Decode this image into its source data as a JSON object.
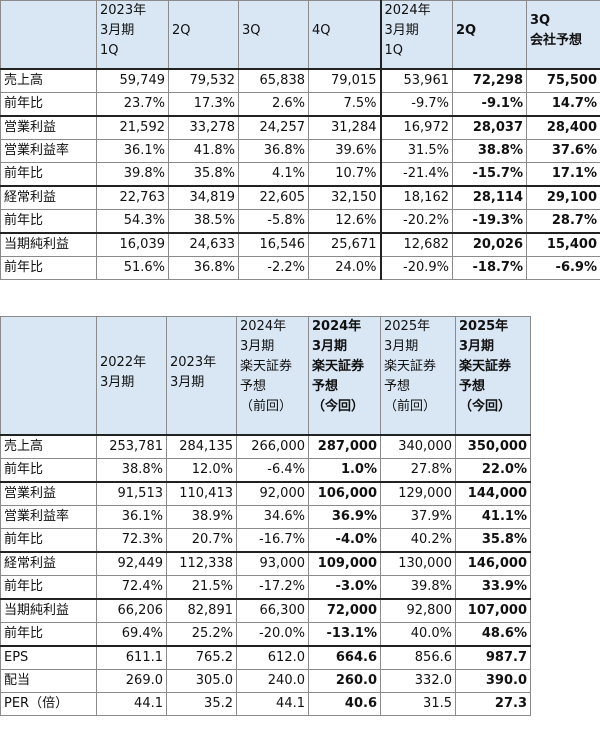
{
  "table1": {
    "headers": [
      [
        "",
        ""
      ],
      [
        "2023年",
        "3月期",
        "1Q"
      ],
      [
        "2Q"
      ],
      [
        "3Q"
      ],
      [
        "4Q"
      ],
      [
        "2024年",
        "3月期",
        "1Q"
      ],
      [
        "2Q"
      ],
      [
        "3Q",
        "会社予想"
      ]
    ],
    "rows": [
      {
        "label": "売上高",
        "values": [
          "59,749",
          "79,532",
          "65,838",
          "79,015",
          "53,961",
          "72,298",
          "75,500"
        ]
      },
      {
        "label": "前年比",
        "values": [
          "23.7%",
          "17.3%",
          "2.6%",
          "7.5%",
          "-9.7%",
          "-9.1%",
          "14.7%"
        ]
      },
      {
        "label": "営業利益",
        "values": [
          "21,592",
          "33,278",
          "24,257",
          "31,284",
          "16,972",
          "28,037",
          "28,400"
        ]
      },
      {
        "label": "営業利益率",
        "values": [
          "36.1%",
          "41.8%",
          "36.8%",
          "39.6%",
          "31.5%",
          "38.8%",
          "37.6%"
        ]
      },
      {
        "label": "前年比",
        "values": [
          "39.8%",
          "35.8%",
          "4.1%",
          "10.7%",
          "-21.4%",
          "-15.7%",
          "17.1%"
        ]
      },
      {
        "label": "経常利益",
        "values": [
          "22,763",
          "34,819",
          "22,605",
          "32,150",
          "18,162",
          "28,114",
          "29,100"
        ]
      },
      {
        "label": "前年比",
        "values": [
          "54.3%",
          "38.5%",
          "-5.8%",
          "12.6%",
          "-20.2%",
          "-19.3%",
          "28.7%"
        ]
      },
      {
        "label": "当期純利益",
        "values": [
          "16,039",
          "24,633",
          "16,546",
          "25,671",
          "12,682",
          "20,026",
          "15,400"
        ]
      },
      {
        "label": "前年比",
        "values": [
          "51.6%",
          "36.8%",
          "-2.2%",
          "24.0%",
          "-20.9%",
          "-18.7%",
          "-6.9%"
        ]
      }
    ]
  },
  "table2": {
    "headers": [
      [
        ""
      ],
      [
        "2022年",
        "3月期"
      ],
      [
        "2023年",
        "3月期"
      ],
      [
        "2024年",
        "3月期",
        "楽天証券",
        "予想",
        "（前回）"
      ],
      [
        "2024年",
        "3月期",
        "楽天証券",
        "予想",
        "（今回）"
      ],
      [
        "2025年",
        "3月期",
        "楽天証券",
        "予想",
        "（前回）"
      ],
      [
        "2025年",
        "3月期",
        "楽天証券",
        "予想",
        "（今回）"
      ]
    ],
    "rows": [
      {
        "label": "売上高",
        "values": [
          "253,781",
          "284,135",
          "266,000",
          "287,000",
          "340,000",
          "350,000"
        ]
      },
      {
        "label": "前年比",
        "values": [
          "38.8%",
          "12.0%",
          "-6.4%",
          "1.0%",
          "27.8%",
          "22.0%"
        ]
      },
      {
        "label": "営業利益",
        "values": [
          "91,513",
          "110,413",
          "92,000",
          "106,000",
          "129,000",
          "144,000"
        ]
      },
      {
        "label": "営業利益率",
        "values": [
          "36.1%",
          "38.9%",
          "34.6%",
          "36.9%",
          "37.9%",
          "41.1%"
        ]
      },
      {
        "label": "前年比",
        "values": [
          "72.3%",
          "20.7%",
          "-16.7%",
          "-4.0%",
          "40.2%",
          "35.8%"
        ]
      },
      {
        "label": "経常利益",
        "values": [
          "92,449",
          "112,338",
          "93,000",
          "109,000",
          "130,000",
          "146,000"
        ]
      },
      {
        "label": "前年比",
        "values": [
          "72.4%",
          "21.5%",
          "-17.2%",
          "-3.0%",
          "39.8%",
          "33.9%"
        ]
      },
      {
        "label": "当期純利益",
        "values": [
          "66,206",
          "82,891",
          "66,300",
          "72,000",
          "92,800",
          "107,000"
        ]
      },
      {
        "label": "前年比",
        "values": [
          "69.4%",
          "25.2%",
          "-20.0%",
          "-13.1%",
          "40.0%",
          "48.6%"
        ]
      },
      {
        "label": "EPS",
        "values": [
          "611.1",
          "765.2",
          "612.0",
          "664.6",
          "856.6",
          "987.7"
        ]
      },
      {
        "label": "配当",
        "values": [
          "269.0",
          "305.0",
          "240.0",
          "260.0",
          "332.0",
          "390.0"
        ]
      },
      {
        "label": "PER（倍）",
        "values": [
          "44.1",
          "35.2",
          "44.1",
          "40.6",
          "31.5",
          "27.3"
        ]
      }
    ]
  }
}
